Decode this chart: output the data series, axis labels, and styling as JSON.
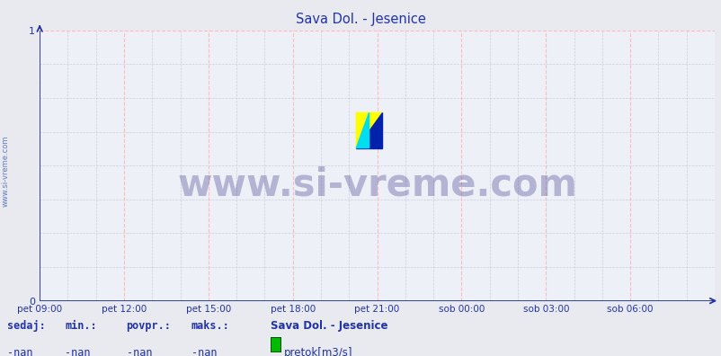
{
  "title": "Sava Dol. - Jesenice",
  "title_color": "#2233aa",
  "title_fontsize": 10.5,
  "bg_color": "#e8eaf0",
  "plot_bg_color": "#eef0f8",
  "axis_color": "#2233aa",
  "grid_color_major": "#ffbbbb",
  "grid_color_minor": "#ccccdd",
  "ylim": [
    0,
    1
  ],
  "yticks": [
    0,
    1
  ],
  "xlim": [
    0,
    288
  ],
  "xtick_labels": [
    "pet 09:00",
    "pet 12:00",
    "pet 15:00",
    "pet 18:00",
    "pet 21:00",
    "sob 00:00",
    "sob 03:00",
    "sob 06:00"
  ],
  "xtick_positions": [
    0,
    36,
    72,
    108,
    144,
    180,
    216,
    252
  ],
  "watermark_text": "www.si-vreme.com",
  "watermark_color": "#1a1a7a",
  "watermark_fontsize": 30,
  "watermark_alpha": 0.28,
  "sidebar_text": "www.si-vreme.com",
  "sidebar_color": "#3355bb",
  "footer_labels": [
    "sedaj:",
    "min.:",
    "povpr.:",
    "maks.:"
  ],
  "footer_values": [
    "-nan",
    "-nan",
    "-nan",
    "-nan"
  ],
  "footer_series_name": "Sava Dol. - Jesenice",
  "footer_legend_label": "pretok[m3/s]",
  "footer_legend_color": "#00bb00",
  "footer_color": "#2233aa",
  "footer_fontsize": 8.5
}
